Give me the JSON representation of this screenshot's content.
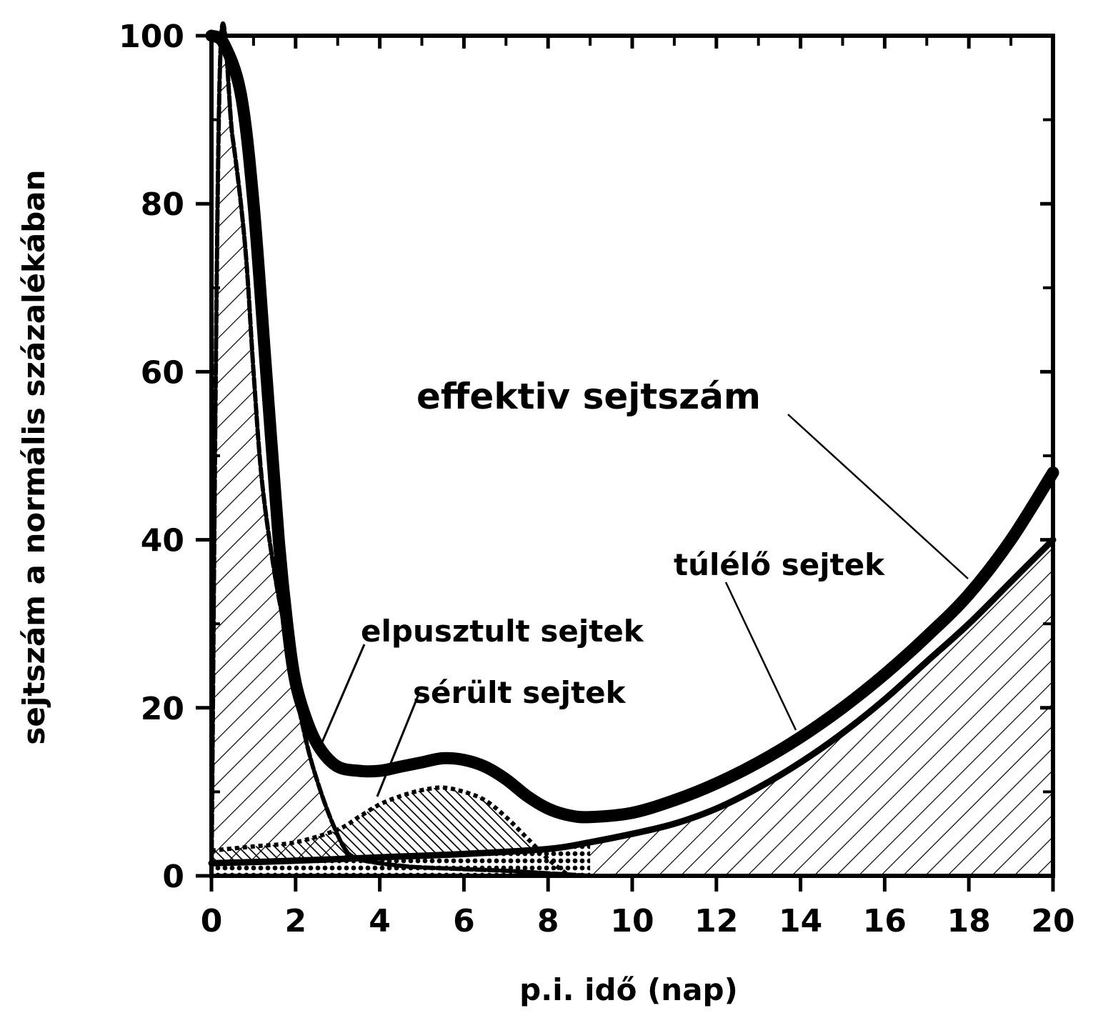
{
  "chart_data": {
    "type": "area",
    "xlabel": "p.i. idő (nap)",
    "ylabel": "sejtszám a normális százalékában",
    "xlim": [
      0,
      20
    ],
    "ylim": [
      0,
      100
    ],
    "x_ticks": [
      0,
      2,
      4,
      6,
      8,
      10,
      12,
      14,
      16,
      18,
      20
    ],
    "y_ticks": [
      0,
      20,
      40,
      60,
      80,
      100
    ],
    "x_minor_ticks": [
      1,
      3,
      5,
      7,
      9,
      11,
      13,
      15,
      17,
      19
    ],
    "y_minor_ticks": [
      10,
      30,
      50,
      70,
      90
    ],
    "grid": false,
    "series": [
      {
        "name": "effektiv sejtszám",
        "x": [
          0,
          0.3,
          0.7,
          1.0,
          1.3,
          1.6,
          1.8,
          2.0,
          2.3,
          2.6,
          3.0,
          3.5,
          4.0,
          4.5,
          5.0,
          5.5,
          6.0,
          6.5,
          7.0,
          7.5,
          8.0,
          8.5,
          9.0,
          10.0,
          11.0,
          12.0,
          13.0,
          14.0,
          15.0,
          16.0,
          17.0,
          18.0,
          19.0,
          20.0
        ],
        "values": [
          100,
          99,
          93,
          80,
          60,
          40,
          30,
          23,
          18,
          15,
          13,
          12.5,
          12.5,
          13,
          13.5,
          14,
          13.8,
          13,
          11.5,
          9.5,
          8,
          7.2,
          7,
          7.5,
          9,
          11,
          13.5,
          16.5,
          20,
          24,
          28.5,
          33.5,
          40,
          48
        ]
      },
      {
        "name": "elpusztult sejtek",
        "x": [
          0,
          0.2,
          0.5,
          0.8,
          1.0,
          1.2,
          1.5,
          1.8,
          2.0,
          2.3,
          2.6,
          2.9,
          3.2,
          3.5,
          4.0,
          4.5,
          5.0,
          6.0,
          7.0,
          8.0,
          9.0
        ],
        "values": [
          0,
          96,
          88,
          75,
          60,
          47,
          36,
          28,
          22,
          15,
          10,
          6,
          3,
          2,
          1.5,
          1.2,
          1,
          0.8,
          0.6,
          0.3,
          0
        ]
      },
      {
        "name": "sérült sejtek",
        "x": [
          0,
          1,
          2,
          3,
          3.5,
          4,
          4.5,
          5,
          5.5,
          6,
          6.5,
          7,
          7.5,
          8,
          8.5
        ],
        "values": [
          3,
          3.5,
          4,
          5.5,
          7,
          8.5,
          9.5,
          10.2,
          10.5,
          10,
          9,
          7,
          4.5,
          2,
          0
        ]
      },
      {
        "name": "túlélő sejtek",
        "x": [
          0,
          2,
          4,
          6,
          8,
          9,
          10,
          11,
          12,
          13,
          14,
          15,
          16,
          17,
          18,
          19,
          20
        ],
        "values": [
          1.5,
          1.8,
          2.2,
          2.6,
          3.2,
          4,
          5,
          6.2,
          8,
          10.5,
          13.5,
          17,
          21,
          25.5,
          30,
          35,
          40
        ]
      }
    ],
    "annotations": [
      {
        "text": "effektiv sejtszám"
      },
      {
        "text": "túlélő sejtek"
      },
      {
        "text": "elpusztult sejtek"
      },
      {
        "text": "sérült sejtek"
      }
    ]
  }
}
